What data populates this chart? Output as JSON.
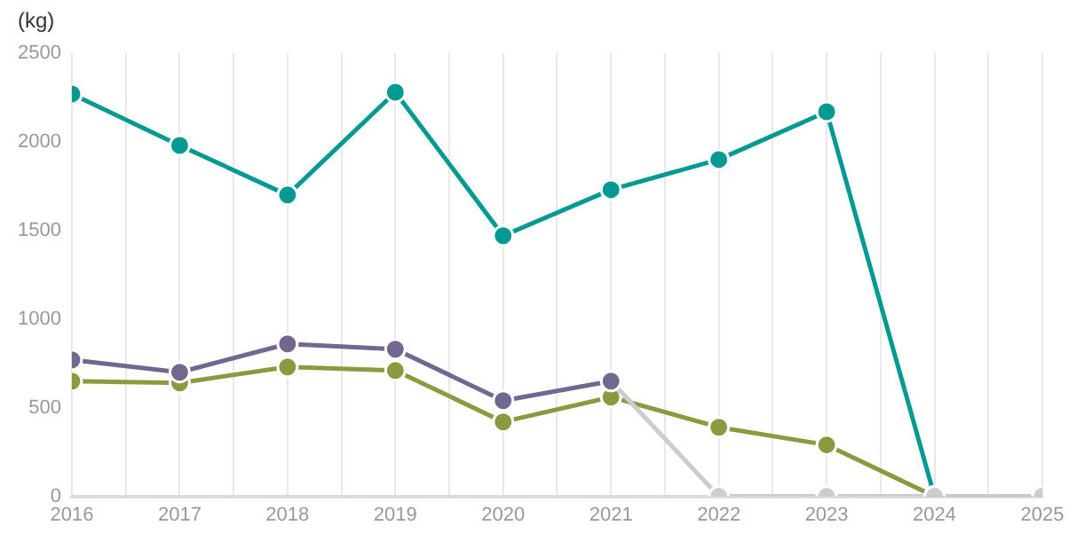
{
  "chart_data": {
    "type": "line",
    "ylabel": "(kg)",
    "x": [
      2016,
      2017,
      2018,
      2019,
      2020,
      2021,
      2022,
      2023,
      2024,
      2025
    ],
    "xlim": [
      2016,
      2025
    ],
    "xticks": [
      2016,
      {
        "value": 2016.5,
        "label": null
      },
      2017,
      {
        "value": 2017.5,
        "label": null
      },
      2018,
      {
        "value": 2018.5,
        "label": null
      },
      2019,
      {
        "value": 2019.5,
        "label": null
      },
      2020,
      {
        "value": 2020.5,
        "label": null
      },
      2021,
      {
        "value": 2021.5,
        "label": null
      },
      2022,
      {
        "value": 2022.5,
        "label": null
      },
      2023,
      {
        "value": 2023.5,
        "label": null
      },
      2024,
      {
        "value": 2024.5,
        "label": null
      },
      2025
    ],
    "ylim": [
      0,
      2500
    ],
    "yticks": [
      0,
      500,
      1000,
      1500,
      2000,
      2500
    ],
    "grid": "x",
    "legend": false,
    "marker": "circle",
    "line_style": "solid",
    "series": [
      {
        "color": "#009a93",
        "values": [
          2270,
          1980,
          1700,
          2280,
          1470,
          1730,
          1900,
          2170,
          0,
          null
        ]
      },
      {
        "color": "#8a9a3f",
        "values": [
          650,
          640,
          730,
          710,
          420,
          560,
          390,
          290,
          0,
          0
        ]
      },
      {
        "color": "#cccccc",
        "values": [
          null,
          null,
          null,
          null,
          null,
          650,
          0,
          0,
          0,
          0
        ]
      },
      {
        "color": "#74678f",
        "values": [
          770,
          700,
          860,
          830,
          540,
          650,
          null,
          null,
          null,
          null
        ]
      }
    ]
  }
}
